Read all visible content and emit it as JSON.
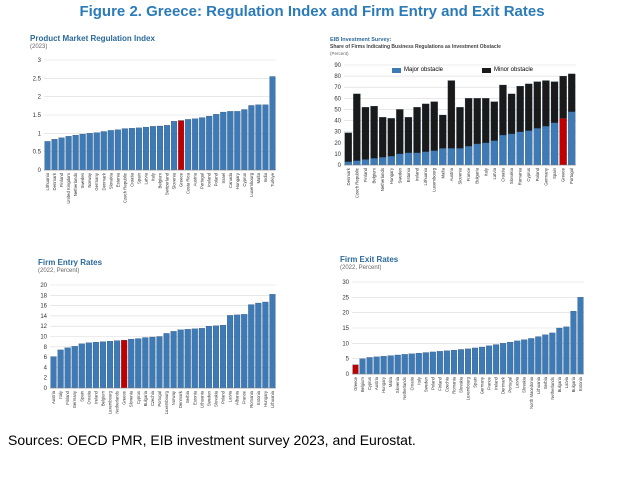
{
  "figure_title": "Figure 2. Greece: Regulation Index and Firm Entry and Exit Rates",
  "sources": "Sources: OECD PMR, EIB investment survey 2023, and Eurostat.",
  "colors": {
    "bar": "#3e7bb6",
    "highlight": "#c00000",
    "major": "#3e7bb6",
    "minor": "#1a1a1a",
    "grid": "#d9d9d9"
  },
  "chart_data": [
    {
      "type": "bar",
      "title": "Product Market Regulation Index",
      "subtitle": "(2023)",
      "highlight": "Greece",
      "categories": [
        "Lithuania",
        "Denmark",
        "Finland",
        "United Kingdom",
        "Netherlands",
        "Sweden",
        "Norway",
        "Germany",
        "Denmark",
        "Slovakia",
        "Estonia",
        "Czech Republic",
        "Croatia",
        "Spain",
        "Latvia",
        "Italy",
        "Belgium",
        "Switzerland",
        "Slovenia",
        "Greece",
        "Costa Rica",
        "Austria",
        "Portugal",
        "Iceland",
        "Poland",
        "Israel",
        "Canada",
        "Hungary",
        "Cyprus",
        "Luxembourg",
        "Malta",
        "India",
        "Turkiye"
      ],
      "values": [
        0.78,
        0.84,
        0.88,
        0.92,
        0.95,
        0.98,
        1.0,
        1.02,
        1.05,
        1.08,
        1.1,
        1.13,
        1.14,
        1.15,
        1.17,
        1.19,
        1.2,
        1.22,
        1.33,
        1.35,
        1.38,
        1.4,
        1.43,
        1.47,
        1.52,
        1.58,
        1.6,
        1.6,
        1.65,
        1.76,
        1.78,
        1.78,
        2.55
      ],
      "ylim": [
        0,
        3
      ],
      "yticks": [
        0,
        0.5,
        1,
        1.5,
        2,
        2.5,
        3
      ],
      "ytick_labels": [
        "0",
        "0.5",
        "1",
        "1.5",
        "2",
        "2.5",
        "3"
      ]
    },
    {
      "type": "bar",
      "title": "EIB Investment Survey:",
      "subtitle": "Share of Firms Indicating Business Regulations as Investment Obstacle",
      "unit_note": "(Percent)",
      "highlight": "Greece",
      "legend": [
        "Major obstacle",
        "Minor obstacle"
      ],
      "categories": [
        "Denmark",
        "Czech Republic",
        "Finland",
        "Belgium",
        "Netherlands",
        "Hungary",
        "Sweden",
        "Estonia",
        "Ireland",
        "Lithuania",
        "Luxembourg",
        "Malta",
        "Austria",
        "Slovenia",
        "France",
        "Bulgaria",
        "Italy",
        "Latvia",
        "Croatia",
        "Slovakia",
        "Romania",
        "Cyprus",
        "Poland",
        "Germany",
        "Spain",
        "Greece",
        "Portugal"
      ],
      "series": [
        {
          "name": "Major obstacle",
          "values": [
            3,
            4,
            5,
            6,
            7,
            8,
            10,
            11,
            11,
            12,
            13,
            15,
            15,
            15,
            17,
            19,
            20,
            22,
            27,
            28,
            30,
            31,
            33,
            35,
            38,
            42,
            48
          ]
        },
        {
          "name": "Minor obstacle",
          "values": [
            26,
            60,
            47,
            47,
            36,
            34,
            40,
            32,
            41,
            43,
            44,
            30,
            61,
            37,
            43,
            41,
            40,
            35,
            45,
            36,
            41,
            42,
            42,
            41,
            37,
            38,
            34
          ]
        }
      ],
      "ylim": [
        0,
        90
      ],
      "yticks": [
        0,
        10,
        20,
        30,
        40,
        50,
        60,
        70,
        80,
        90
      ],
      "ytick_labels": [
        "0",
        "10",
        "20",
        "30",
        "40",
        "50",
        "60",
        "70",
        "80",
        "90"
      ]
    },
    {
      "type": "bar",
      "title": "Firm Entry Rates",
      "subtitle": "(2022, Percent)",
      "highlight": "Greece",
      "categories": [
        "Austria",
        "Italy",
        "Finland",
        "Germany",
        "Spain",
        "Croatia",
        "Ireland",
        "Belgium",
        "Luxembourg",
        "Netherlands",
        "Greece",
        "Slovenia",
        "Cyprus",
        "Bulgaria",
        "Czechia",
        "Portugal",
        "Luxembourg",
        "Norway",
        "Denmark",
        "Serbia",
        "Estonia",
        "Lithuania",
        "Sweden",
        "Slovakia",
        "Poland",
        "Latvia",
        "Albania",
        "France",
        "Romania",
        "Estonia",
        "Hungary",
        "Lithuania"
      ],
      "values": [
        6.1,
        7.4,
        7.8,
        8.1,
        8.6,
        8.8,
        8.9,
        9.0,
        9.1,
        9.2,
        9.3,
        9.5,
        9.6,
        9.8,
        9.9,
        10.0,
        10.6,
        11.0,
        11.3,
        11.4,
        11.5,
        11.6,
        12.0,
        12.1,
        12.2,
        14.1,
        14.2,
        14.3,
        16.2,
        16.5,
        16.7,
        18.2
      ],
      "ylim": [
        0,
        20
      ],
      "yticks": [
        0,
        2,
        4,
        6,
        8,
        10,
        12,
        14,
        16,
        18,
        20
      ],
      "ytick_labels": [
        "0",
        "2",
        "4",
        "6",
        "8",
        "10",
        "12",
        "14",
        "16",
        "18",
        "20"
      ]
    },
    {
      "type": "bar",
      "title": "Firm Exit Rates",
      "subtitle": "(2022, Percent)",
      "highlight": "Greece",
      "categories": [
        "Greece",
        "Belgium",
        "Cyprus",
        "Austria",
        "Hungary",
        "Malta",
        "Slovenia",
        "Netherlands",
        "Croatia",
        "Italy",
        "Sweden",
        "Poland",
        "Finland",
        "Czechia",
        "Romania",
        "Slovakia",
        "Luxembourg",
        "Spain",
        "Germany",
        "France",
        "Ireland",
        "Denmark",
        "Portugal",
        "Latvia",
        "Slovakia",
        "North Macedonia",
        "Lithuania",
        "Serbia",
        "Netherlands",
        "Bulgaria",
        "Latvia",
        "Bulgaria",
        "Estonia"
      ],
      "values": [
        3.0,
        5.0,
        5.4,
        5.6,
        5.8,
        6.0,
        6.2,
        6.4,
        6.6,
        6.8,
        7.0,
        7.2,
        7.4,
        7.6,
        7.8,
        8.0,
        8.2,
        8.5,
        8.8,
        9.2,
        9.6,
        10.0,
        10.4,
        10.8,
        11.2,
        11.6,
        12.2,
        12.8,
        13.4,
        15.0,
        15.4,
        20.5,
        25.0
      ],
      "ylim": [
        0,
        30
      ],
      "yticks": [
        0,
        5,
        10,
        15,
        20,
        25,
        30
      ],
      "ytick_labels": [
        "0",
        "5",
        "10",
        "15",
        "20",
        "25",
        "30"
      ]
    }
  ]
}
